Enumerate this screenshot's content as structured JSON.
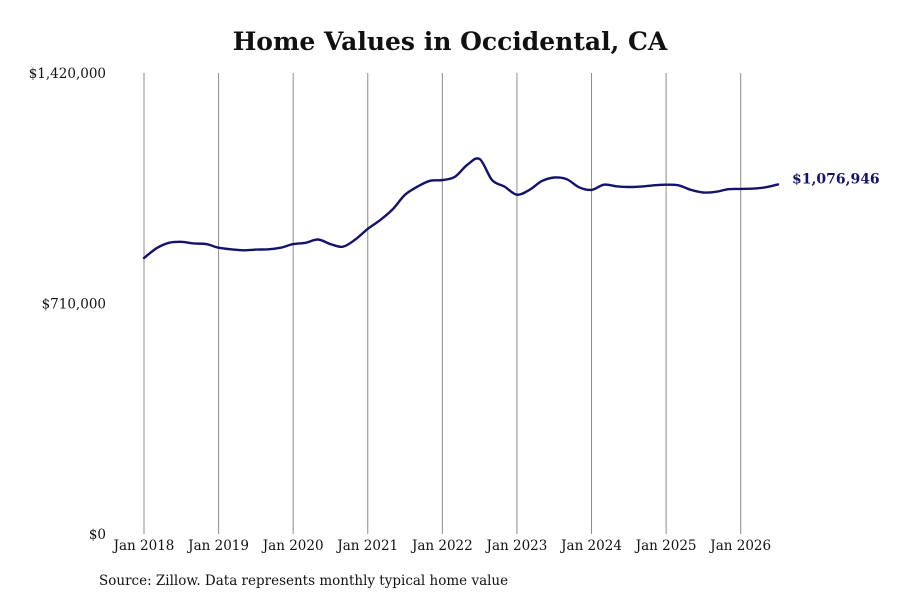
{
  "chart_data": {
    "type": "line",
    "title": "Home Values in Occidental, CA",
    "xlabel": "",
    "ylabel": "",
    "x_ticks": [
      "Jan 2018",
      "Jan 2019",
      "Jan 2020",
      "Jan 2021",
      "Jan 2022",
      "Jan 2023",
      "Jan 2024",
      "Jan 2025",
      "Jan 2026"
    ],
    "y_ticks": [
      "$0",
      "$710,000",
      "$1,420,000"
    ],
    "y_tick_values": [
      0,
      710000,
      1420000
    ],
    "ylim": [
      0,
      1420000
    ],
    "xlim": [
      "2018-01",
      "2026-07"
    ],
    "grid": "vertical lines at January of each year",
    "legend": "none",
    "line_color": "#13136b",
    "end_label": "$1,076,946",
    "series": [
      {
        "x": [
          "2018-01",
          "2018-03",
          "2018-05",
          "2018-07",
          "2018-09",
          "2018-11",
          "2019-01",
          "2019-03",
          "2019-05",
          "2019-07",
          "2019-09",
          "2019-11",
          "2020-01",
          "2020-03",
          "2020-05",
          "2020-07",
          "2020-09",
          "2020-11",
          "2021-01",
          "2021-03",
          "2021-05",
          "2021-07",
          "2021-09",
          "2021-11",
          "2022-01",
          "2022-03",
          "2022-05",
          "2022-07",
          "2022-09",
          "2022-11",
          "2023-01",
          "2023-03",
          "2023-05",
          "2023-07",
          "2023-09",
          "2023-11",
          "2024-01",
          "2024-03",
          "2024-05",
          "2024-07",
          "2024-09",
          "2024-11",
          "2025-01",
          "2025-03",
          "2025-05",
          "2025-07",
          "2025-09",
          "2025-11",
          "2026-01",
          "2026-03",
          "2026-05",
          "2026-07"
        ],
        "values": [
          850000,
          880000,
          897000,
          900000,
          895000,
          893000,
          882000,
          877000,
          874000,
          876000,
          877000,
          882000,
          893000,
          897000,
          907000,
          893000,
          885000,
          907000,
          940000,
          967000,
          1000000,
          1045000,
          1070000,
          1088000,
          1090000,
          1100000,
          1137000,
          1155000,
          1090000,
          1070000,
          1045000,
          1060000,
          1087000,
          1098000,
          1093000,
          1068000,
          1060000,
          1076000,
          1071000,
          1069000,
          1070000,
          1074000,
          1076000,
          1074000,
          1060000,
          1052000,
          1054000,
          1062000,
          1063000,
          1064000,
          1068000,
          1076946
        ]
      }
    ]
  },
  "source": "Source: Zillow. Data represents monthly typical home value"
}
